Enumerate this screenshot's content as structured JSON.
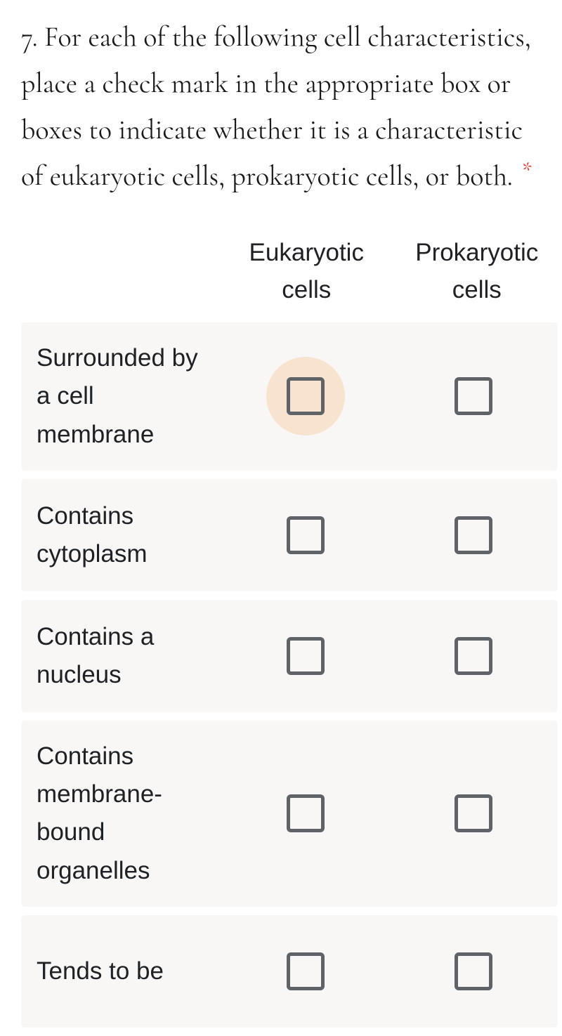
{
  "question": {
    "text": "7. For each of the following cell characteristics, place a check mark in the appropriate box or boxes to indicate whether it is a characteristic of eukaryotic cells, prokaryotic cells, or both. ",
    "required_marker": "*"
  },
  "columns": [
    {
      "label": "Eukaryotic cells"
    },
    {
      "label": "Prokaryotic cells"
    }
  ],
  "rows": [
    {
      "label": "Surrounded by a cell membrane",
      "highlighted_col": 0
    },
    {
      "label": "Contains cytoplasm",
      "highlighted_col": -1
    },
    {
      "label": "Contains a nucleus",
      "highlighted_col": -1
    },
    {
      "label": "Contains membrane-bound organelles",
      "highlighted_col": -1
    },
    {
      "label": "Tends to be",
      "highlighted_col": -1
    }
  ],
  "colors": {
    "row_bg": "#f8f7f5",
    "highlight_bg": "#f8e3cf",
    "checkbox_border": "#5f6368",
    "required": "#d93025",
    "text": "#202124"
  }
}
